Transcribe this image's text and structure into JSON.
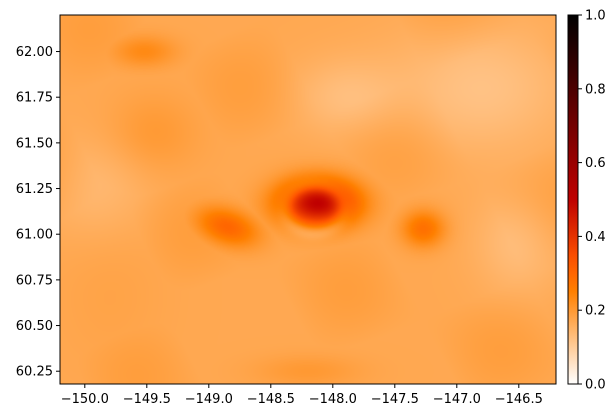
{
  "chart_data": {
    "type": "heatmap",
    "title": "",
    "xlabel": "",
    "ylabel": "",
    "colormap": "gist_heat_r",
    "xlim": [
      -150.2,
      -146.2
    ],
    "ylim": [
      60.18,
      62.2
    ],
    "x_ticks": [
      -150.0,
      -149.5,
      -149.0,
      -148.5,
      -148.0,
      -147.5,
      -147.0,
      -146.5
    ],
    "x_tick_labels": [
      "−150.0",
      "−149.5",
      "−149.0",
      "−148.5",
      "−148.0",
      "−147.5",
      "−147.0",
      "−146.5"
    ],
    "y_ticks": [
      60.25,
      60.5,
      60.75,
      61.0,
      61.25,
      61.5,
      61.75,
      62.0
    ],
    "y_tick_labels": [
      "60.25",
      "60.50",
      "60.75",
      "61.00",
      "61.25",
      "61.50",
      "61.75",
      "62.00"
    ],
    "colorbar": {
      "range": [
        0.0,
        1.0
      ],
      "ticks": [
        0.0,
        0.2,
        0.4,
        0.6,
        0.8,
        1.0
      ],
      "tick_labels": [
        "0.0",
        "0.2",
        "0.4",
        "0.6",
        "0.8",
        "1.0"
      ]
    },
    "background_value": 0.17,
    "hotspots": [
      {
        "x": -148.12,
        "y": 61.17,
        "sx": 0.22,
        "sy": 0.09,
        "value": 0.5
      },
      {
        "x": -148.85,
        "y": 61.04,
        "sx": 0.14,
        "sy": 0.09,
        "value": 0.3,
        "angle": -50
      },
      {
        "x": -147.27,
        "y": 61.03,
        "sx": 0.12,
        "sy": 0.07,
        "value": 0.28
      },
      {
        "x": -149.52,
        "y": 62.0,
        "sx": 0.18,
        "sy": 0.06,
        "value": 0.23
      },
      {
        "x": -149.45,
        "y": 61.55,
        "sx": 0.25,
        "sy": 0.15,
        "value": 0.2
      },
      {
        "x": -148.2,
        "y": 60.25,
        "sx": 0.3,
        "sy": 0.06,
        "value": 0.2
      },
      {
        "x": -149.8,
        "y": 60.7,
        "sx": 0.3,
        "sy": 0.3,
        "value": 0.18
      },
      {
        "x": -147.5,
        "y": 61.4,
        "sx": 0.4,
        "sy": 0.2,
        "value": 0.17
      }
    ],
    "light_regions": [
      {
        "x": -148.15,
        "y": 61.14,
        "r1": 0.3,
        "r2": 0.13,
        "depth": 0.06
      },
      {
        "x": -146.8,
        "y": 61.8,
        "sx": 0.5,
        "sy": 0.25,
        "depth": 0.05
      },
      {
        "x": -147.9,
        "y": 61.75,
        "sx": 0.3,
        "sy": 0.15,
        "depth": 0.04
      },
      {
        "x": -146.5,
        "y": 60.95,
        "sx": 0.25,
        "sy": 0.2,
        "depth": 0.04
      },
      {
        "x": -149.9,
        "y": 61.25,
        "sx": 0.3,
        "sy": 0.2,
        "depth": 0.03
      }
    ]
  }
}
